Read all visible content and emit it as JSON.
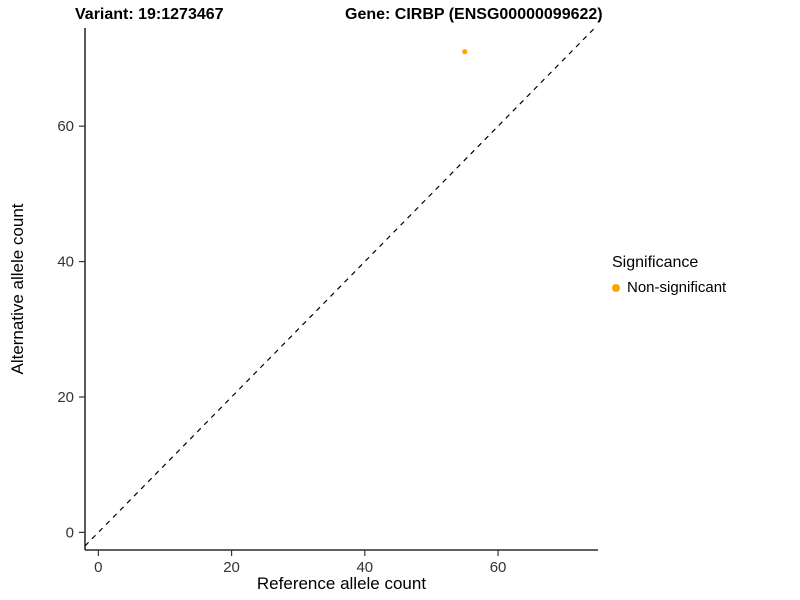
{
  "figure": {
    "background": "#FFFFFF"
  },
  "chart_data": {
    "type": "scatter",
    "title_variant": "Variant: 19:1273467",
    "title_gene": "Gene: CIRBP (ENSG00000099622)",
    "xlabel": "Reference allele count",
    "ylabel": "Alternative allele count",
    "xlim": [
      -2,
      75
    ],
    "ylim": [
      -2.6,
      74.5
    ],
    "xticks": [
      0,
      20,
      40,
      60
    ],
    "yticks": [
      0,
      20,
      40,
      60
    ],
    "grid": false,
    "axis_color": "#000000",
    "tick_color": "#333333",
    "points": [
      {
        "x": 55,
        "y": 71,
        "series": "Non-significant",
        "color": "#FFA500",
        "radius": 2.6
      }
    ],
    "reference_line": {
      "slope": 1,
      "intercept": 0,
      "style": "dashed",
      "color": "#000000"
    },
    "legend": {
      "position": "right",
      "title": "Significance",
      "entries": [
        {
          "label": "Non-significant",
          "color": "#FFA500"
        }
      ]
    }
  }
}
